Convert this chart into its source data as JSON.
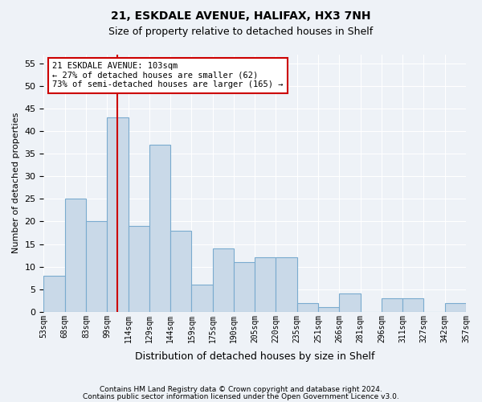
{
  "title1": "21, ESKDALE AVENUE, HALIFAX, HX3 7NH",
  "title2": "Size of property relative to detached houses in Shelf",
  "xlabel": "Distribution of detached houses by size in Shelf",
  "ylabel": "Number of detached properties",
  "bar_labels": [
    "53sqm",
    "68sqm",
    "83sqm",
    "99sqm",
    "114sqm",
    "129sqm",
    "144sqm",
    "159sqm",
    "175sqm",
    "190sqm",
    "205sqm",
    "220sqm",
    "235sqm",
    "251sqm",
    "266sqm",
    "281sqm",
    "296sqm",
    "311sqm",
    "327sqm",
    "342sqm",
    "357sqm"
  ],
  "bar_values": [
    8,
    25,
    20,
    43,
    19,
    37,
    18,
    6,
    14,
    11,
    12,
    12,
    2,
    1,
    4,
    0,
    3,
    3,
    0,
    2
  ],
  "bar_color": "#c9d9e8",
  "bar_edgecolor": "#7aabcf",
  "ylim": [
    0,
    57
  ],
  "yticks": [
    0,
    5,
    10,
    15,
    20,
    25,
    30,
    35,
    40,
    45,
    50,
    55
  ],
  "red_line_x": 3.5,
  "annotation_line1": "21 ESKDALE AVENUE: 103sqm",
  "annotation_line2": "← 27% of detached houses are smaller (62)",
  "annotation_line3": "73% of semi-detached houses are larger (165) →",
  "annotation_box_color": "#ffffff",
  "annotation_box_edgecolor": "#cc0000",
  "footer1": "Contains HM Land Registry data © Crown copyright and database right 2024.",
  "footer2": "Contains public sector information licensed under the Open Government Licence v3.0.",
  "background_color": "#eef2f7",
  "grid_color": "#ffffff"
}
